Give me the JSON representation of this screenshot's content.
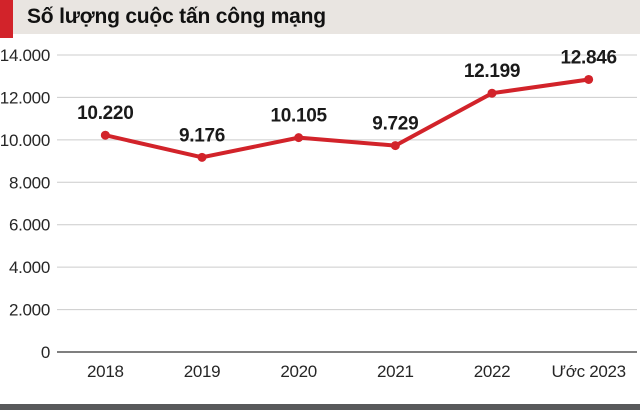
{
  "title": "Số lượng cuộc tấn công mạng",
  "colors": {
    "accent_red": "#d2232a",
    "title_band_bg": "#e9e5e1",
    "title_text": "#111111",
    "grid_line": "#cccccc",
    "zero_axis": "#7f7f7f",
    "tick_text": "#262626",
    "value_label_text": "#1a1a1a",
    "bottom_bar": "#58595b",
    "background": "#ffffff"
  },
  "chart_data": {
    "type": "line",
    "title": "Số lượng cuộc tấn công mạng",
    "categories": [
      "2018",
      "2019",
      "2020",
      "2021",
      "2022",
      "Ước 2023"
    ],
    "series": [
      {
        "name": "Số lượng cuộc tấn công mạng",
        "values": [
          10220,
          9176,
          10105,
          9729,
          12199,
          12846
        ],
        "value_labels": [
          "10.220",
          "9.176",
          "10.105",
          "9.729",
          "12.199",
          "12.846"
        ],
        "color": "#d2232a",
        "marker": "circle"
      }
    ],
    "xlabel": "",
    "ylabel": "",
    "ylim": [
      0,
      14000
    ],
    "y_ticks": [
      0,
      2000,
      4000,
      6000,
      8000,
      10000,
      12000,
      14000
    ],
    "y_tick_labels": [
      "0",
      "2.000",
      "4.000",
      "6.000",
      "8.000",
      "10.000",
      "12.000",
      "14.000"
    ],
    "grid": true,
    "legend": "none"
  }
}
